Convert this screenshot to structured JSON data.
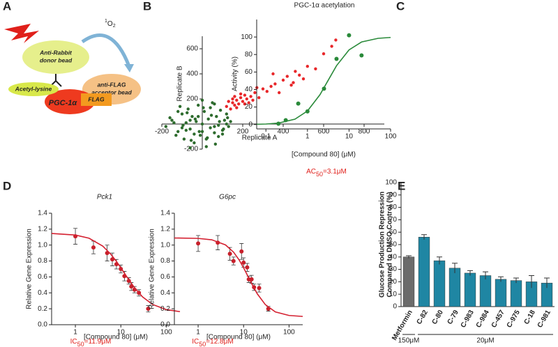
{
  "panel_labels": [
    "A",
    "B",
    "C",
    "D",
    "E"
  ],
  "diagram": {
    "donor_bead": [
      "Anti-Rabbit",
      "donor bead"
    ],
    "acceptor_bead": [
      "anti-FLAG",
      "acceptor bead"
    ],
    "acetyl": "Acetyl-lysine",
    "protein": "PGC-1α",
    "tag": "FLAG",
    "singlet_oxygen": [
      "1",
      "O",
      "2"
    ]
  },
  "chart_data": [
    {
      "type": "scatter",
      "axes": "origin",
      "x_label": "Replicate A",
      "y_label": "Replicate B",
      "xlim": [
        -200,
        900
      ],
      "ylim": [
        -200,
        700
      ],
      "xticks": [
        -200,
        200,
        400,
        600,
        800
      ],
      "yticks": [
        -200,
        200,
        400,
        600
      ],
      "series": [
        {
          "color": "#e8272a",
          "x": [
            120,
            140,
            150,
            160,
            170,
            180,
            190,
            200,
            210,
            220,
            230,
            150,
            170,
            190,
            210,
            240,
            260,
            280,
            300,
            320,
            340,
            360,
            380,
            400,
            420,
            440,
            460,
            480,
            500,
            520,
            560,
            600,
            640,
            660,
            250,
            270,
            130,
            160,
            350,
            450
          ],
          "values": [
            140,
            120,
            170,
            150,
            190,
            160,
            210,
            180,
            230,
            200,
            170,
            200,
            130,
            240,
            160,
            220,
            250,
            210,
            280,
            260,
            300,
            320,
            250,
            350,
            380,
            310,
            420,
            390,
            360,
            460,
            440,
            560,
            620,
            670,
            190,
            290,
            180,
            220,
            400,
            330
          ]
        },
        {
          "color": "#2d6b2d",
          "x": [
            -180,
            -150,
            -120,
            -100,
            -90,
            -80,
            -70,
            -60,
            -50,
            -40,
            -30,
            -20,
            -10,
            0,
            10,
            20,
            30,
            40,
            50,
            60,
            70,
            80,
            90,
            100,
            110,
            120,
            130,
            -160,
            -130,
            -110,
            -95,
            -75,
            -55,
            -35,
            -15,
            5,
            25,
            45,
            65,
            85,
            105,
            125,
            -140,
            -100,
            -60,
            -20,
            20,
            60,
            100,
            140,
            -120,
            -80,
            -40,
            0,
            40,
            80,
            120,
            -60,
            0,
            60
          ],
          "values": [
            -20,
            30,
            -60,
            80,
            -120,
            10,
            120,
            -40,
            60,
            -150,
            20,
            150,
            -90,
            0,
            100,
            -180,
            40,
            -30,
            170,
            -70,
            60,
            -10,
            110,
            -50,
            30,
            80,
            -20,
            50,
            -90,
            140,
            -10,
            90,
            -130,
            40,
            -60,
            130,
            -110,
            70,
            -160,
            20,
            -40,
            50,
            10,
            -30,
            -190,
            60,
            -120,
            160,
            -80,
            20,
            100,
            -50,
            -80,
            190,
            130,
            -100,
            0,
            30,
            -60,
            -20
          ]
        }
      ]
    },
    {
      "type": "scatter",
      "title": "PGC-1α acetylation",
      "x_label": "[Compound 80] (μM)",
      "y_label": "Activity (%)",
      "xlog": true,
      "xlim": [
        0.06,
        100
      ],
      "ylim": [
        -5,
        120
      ],
      "xticks": [
        0.1,
        1,
        10,
        100
      ],
      "yticks": [
        0,
        20,
        40,
        60,
        80,
        100
      ],
      "annotation": [
        "AC",
        "50",
        "=3.1μM"
      ],
      "annotation_color": "#e0201b",
      "series": [
        {
          "color": "#2a8a3a",
          "x": [
            0.2,
            0.3,
            0.6,
            1,
            2.5,
            5,
            10,
            20
          ],
          "values": [
            1,
            5,
            24,
            15,
            41,
            75,
            102,
            79
          ]
        },
        {
          "color": "#2a8a3a",
          "line": true,
          "x": [
            0.06,
            0.1,
            0.2,
            0.5,
            1,
            2,
            3,
            5,
            10,
            20,
            50,
            100
          ],
          "values": [
            0.27,
            0.58,
            1.61,
            6.1,
            15.5,
            34.1,
            48.8,
            67.2,
            85.3,
            94.3,
            98.5,
            99.5
          ]
        }
      ]
    },
    {
      "type": "scatter",
      "title": "Pck1",
      "x_label": "[Compound 80] (μM)",
      "y_label": "Relative Gene Expression",
      "xlog": true,
      "xlim": [
        0.3,
        200
      ],
      "ylim": [
        0,
        1.4
      ],
      "xticks": [
        1,
        10,
        100
      ],
      "yticks": [
        {
          "value": 0,
          "label": "0.0"
        },
        0.2,
        0.4,
        0.6,
        0.8,
        {
          "value": 1,
          "label": "1.0"
        },
        1.2,
        1.4
      ],
      "annotation": [
        "IC",
        "50",
        "=11.9μM"
      ],
      "annotation_color": "#e0201b",
      "series": [
        {
          "color": "#c8202b",
          "x": [
            1,
            2.5,
            5,
            6.5,
            8,
            10,
            12,
            15,
            17,
            20,
            25,
            40
          ],
          "values": [
            1.11,
            0.97,
            0.9,
            0.82,
            0.76,
            0.7,
            0.61,
            0.55,
            0.48,
            0.44,
            0.4,
            0.2
          ],
          "errors": [
            0.1,
            0.08,
            0.1,
            0.08,
            0.06,
            0.05,
            0.06,
            0.04,
            0.05,
            0.04,
            0.04,
            0.04
          ]
        },
        {
          "color": "#d42030",
          "line": true,
          "x": [
            0.3,
            1,
            2,
            4,
            6,
            8,
            10,
            12,
            15,
            20,
            30,
            50,
            100,
            200
          ],
          "values": [
            1.146,
            1.126,
            1.086,
            0.987,
            0.886,
            0.795,
            0.715,
            0.647,
            0.564,
            0.465,
            0.35,
            0.254,
            0.19,
            0.164
          ]
        }
      ]
    },
    {
      "type": "scatter",
      "title": "G6pc",
      "x_label": "[Compound 80] (μM)",
      "y_label": "Relative Gene Expression",
      "xlog": true,
      "xlim": [
        0.3,
        200
      ],
      "ylim": [
        0,
        1.4
      ],
      "xticks": [
        1,
        10,
        100
      ],
      "yticks": [
        {
          "value": 0,
          "label": "0.0"
        },
        0.2,
        0.4,
        0.6,
        0.8,
        {
          "value": 1,
          "label": "1.0"
        },
        1.2,
        1.4
      ],
      "annotation": [
        "IC",
        "50",
        "=12.8μM"
      ],
      "annotation_color": "#e0201b",
      "series": [
        {
          "color": "#c8202b",
          "x": [
            1,
            2.7,
            5,
            6,
            9,
            10,
            12,
            13,
            15,
            17,
            22,
            35
          ],
          "values": [
            1.02,
            1.03,
            0.89,
            0.8,
            0.92,
            0.78,
            0.72,
            0.57,
            0.57,
            0.47,
            0.46,
            0.2
          ],
          "errors": [
            0.1,
            0.09,
            0.08,
            0.05,
            0.1,
            0.06,
            0.05,
            0.04,
            0.05,
            0.04,
            0.05,
            0.03
          ]
        },
        {
          "color": "#d42030",
          "line": true,
          "x": [
            0.3,
            1,
            2,
            4,
            6,
            8,
            10,
            12,
            15,
            20,
            30,
            50,
            100,
            200
          ],
          "values": [
            1.089,
            1.084,
            1.066,
            1.002,
            0.912,
            0.812,
            0.715,
            0.627,
            0.517,
            0.388,
            0.253,
            0.161,
            0.116,
            0.104
          ]
        }
      ]
    },
    {
      "type": "bar",
      "y_label": [
        "Glucose Production Repression",
        "Compared to DMSO Control (%)"
      ],
      "categories": [
        "Metformin",
        "C-82",
        "C-80",
        "C-79",
        "C-983",
        "C-984",
        "C-457",
        "C-975",
        "C-18",
        "C-981"
      ],
      "values": [
        40,
        56,
        37,
        31,
        27,
        25,
        22,
        21,
        20,
        19
      ],
      "errors": [
        1,
        2,
        3,
        4,
        2,
        3,
        2,
        2,
        5,
        4
      ],
      "colors": [
        "#6b6b6b",
        "#1f86a3",
        "#1f86a3",
        "#1f86a3",
        "#1f86a3",
        "#1f86a3",
        "#1f86a3",
        "#1f86a3",
        "#1f86a3",
        "#1f86a3"
      ],
      "ylim": [
        0,
        100
      ],
      "yticks": [
        0,
        10,
        20,
        30,
        40,
        50,
        60,
        70,
        80,
        90,
        100
      ],
      "groups": [
        {
          "label": "150μM",
          "count": 1
        },
        {
          "label": "20μM",
          "count": 9
        }
      ]
    }
  ]
}
